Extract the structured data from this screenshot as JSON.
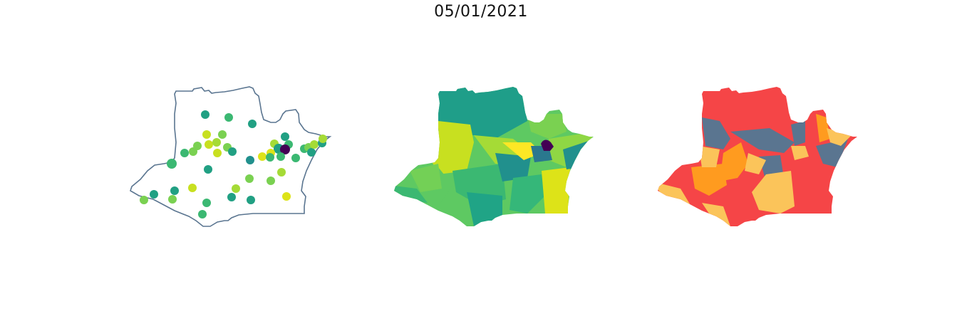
{
  "figure": {
    "title": "05/01/2021"
  },
  "colors": {
    "outline": "#5a7590",
    "viridis_dark": "#440154",
    "viridis_teal": "#21908d",
    "viridis_green": "#5ec962",
    "viridis_yellow": "#dde318",
    "class_red": "#f54547",
    "class_orange": "#ff9b1f",
    "class_yellow": "#fbc45a",
    "class_slate": "#5a7590"
  },
  "panels": [
    {
      "id": "points",
      "kind": "bubble-points",
      "description_hidden": true
    },
    {
      "id": "choropleth-continuous",
      "kind": "choropleth",
      "colormap": "viridis"
    },
    {
      "id": "choropleth-classes",
      "kind": "choropleth",
      "colormap": "categorical"
    }
  ]
}
